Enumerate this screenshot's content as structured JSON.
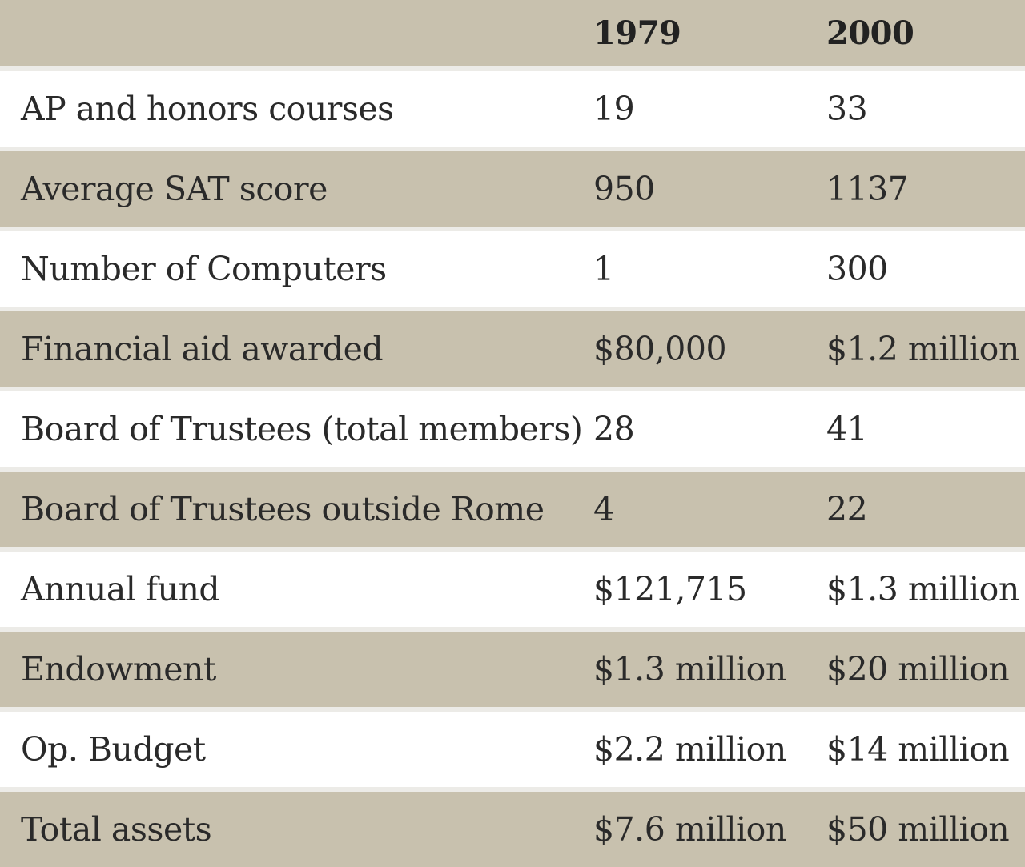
{
  "chart_data": {
    "type": "table",
    "columns": [
      "",
      "1979",
      "2000"
    ],
    "rows": [
      [
        "AP and honors courses",
        "19",
        "33"
      ],
      [
        "Average SAT score",
        "950",
        "1137"
      ],
      [
        "Number of Computers",
        "1",
        "300"
      ],
      [
        "Financial aid awarded",
        "$80,000",
        "$1.2 million"
      ],
      [
        "Board of Trustees (total members)",
        "28",
        "41"
      ],
      [
        "Board of Trustees outside Rome",
        "4",
        "22"
      ],
      [
        "Annual fund",
        "$121,715",
        "$1.3 million"
      ],
      [
        "Endowment",
        "$1.3 million",
        "$20 million"
      ],
      [
        "Op. Budget",
        "$2.2 million",
        "$14 million"
      ],
      [
        "Total assets",
        "$7.6 million",
        "$50 million"
      ]
    ]
  },
  "colors": {
    "stripe": "#c8c1ae",
    "background": "#ffffff",
    "separator": "#ecebe7",
    "text": "#2a2a2a"
  }
}
